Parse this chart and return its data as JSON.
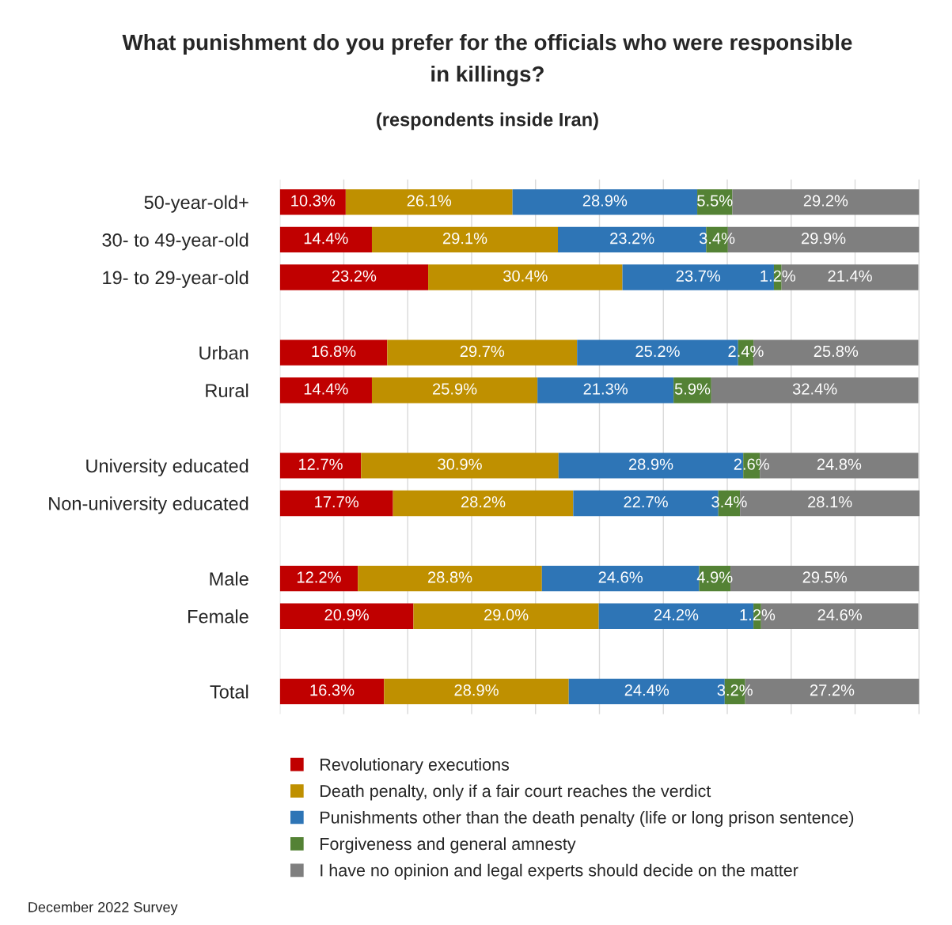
{
  "chart_data": {
    "type": "bar",
    "orientation": "horizontal",
    "stacked": true,
    "title": "What punishment do you prefer for the officials who were responsible\nin killings?",
    "subtitle": "(respondents inside Iran)",
    "categories": [
      "50-year-old+",
      "30- to 49-year-old",
      "19- to 29-year-old",
      null,
      "Urban",
      "Rural",
      null,
      "University educated",
      "Non-university educated",
      null,
      "Male",
      "Female",
      null,
      "Total"
    ],
    "series": [
      {
        "name": "Revolutionary executions",
        "color": "#c00000",
        "values": [
          10.3,
          14.4,
          23.2,
          null,
          16.8,
          14.4,
          null,
          12.7,
          17.7,
          null,
          12.2,
          20.9,
          null,
          16.3
        ],
        "value_labels": [
          "10.3%",
          "14.4%",
          "23.2%",
          null,
          "16.8%",
          "14.4%",
          null,
          "12.7%",
          "17.7%",
          null,
          "12.2%",
          "20.9%",
          null,
          "16.3%"
        ]
      },
      {
        "name": "Death penalty, only if a fair court reaches the verdict",
        "color": "#bf9000",
        "values": [
          26.1,
          29.1,
          30.4,
          null,
          29.7,
          25.9,
          null,
          30.9,
          28.2,
          null,
          28.8,
          29.0,
          null,
          28.9
        ],
        "value_labels": [
          "26.1%",
          "29.1%",
          "30.4%",
          null,
          "29.7%",
          "25.9%",
          null,
          "30.9%",
          "28.2%",
          null,
          "28.8%",
          "29.0%",
          null,
          "28.9%"
        ]
      },
      {
        "name": "Punishments other than the death penalty (life or long prison sentence)",
        "color": "#2e75b6",
        "values": [
          28.9,
          23.2,
          23.7,
          null,
          25.2,
          21.3,
          null,
          28.9,
          22.7,
          null,
          24.6,
          24.2,
          null,
          24.4
        ],
        "value_labels": [
          "28.9%",
          "23.2%",
          "23.7%",
          null,
          "25.2%",
          "21.3%",
          null,
          "28.9%",
          "22.7%",
          null,
          "24.6%",
          "24.2%",
          null,
          "24.4%"
        ]
      },
      {
        "name": "Forgiveness and general amnesty",
        "color": "#548235",
        "values": [
          5.5,
          3.4,
          1.2,
          null,
          2.4,
          5.9,
          null,
          2.6,
          3.4,
          null,
          4.9,
          1.2,
          null,
          3.2
        ],
        "value_labels": [
          "5.5%",
          "3.4%",
          "1.2%",
          null,
          "2.4%",
          "5.9%",
          null,
          "2.6%",
          "3.4%",
          null,
          "4.9%",
          "1.2%",
          null,
          "3.2%"
        ]
      },
      {
        "name": "I have no opinion and legal experts should decide on the matter",
        "color": "#7f7f7f",
        "values": [
          29.2,
          29.9,
          21.4,
          null,
          25.8,
          32.4,
          null,
          24.8,
          28.1,
          null,
          29.5,
          24.6,
          null,
          27.2
        ],
        "value_labels": [
          "29.2%",
          "29.9%",
          "21.4%",
          null,
          "25.8%",
          "32.4%",
          null,
          "24.8%",
          "28.1%",
          null,
          "29.5%",
          "24.6%",
          null,
          "27.2%"
        ]
      }
    ],
    "xlim": [
      0,
      100.1
    ],
    "xticks": [
      {
        "value": 0,
        "label": null
      },
      {
        "value": 10,
        "label": null
      },
      {
        "value": 20,
        "label": null
      },
      {
        "value": 30,
        "label": null
      },
      {
        "value": 40,
        "label": null
      },
      {
        "value": 50,
        "label": null
      },
      {
        "value": 60,
        "label": null
      },
      {
        "value": 70,
        "label": null
      },
      {
        "value": 80,
        "label": null
      },
      {
        "value": 90,
        "label": null
      },
      {
        "value": 100,
        "label": null
      }
    ],
    "tick_labels": "y",
    "grid": "x",
    "legend": "bottom",
    "marker": "square",
    "annotations": [
      "December 2022 Survey"
    ]
  }
}
